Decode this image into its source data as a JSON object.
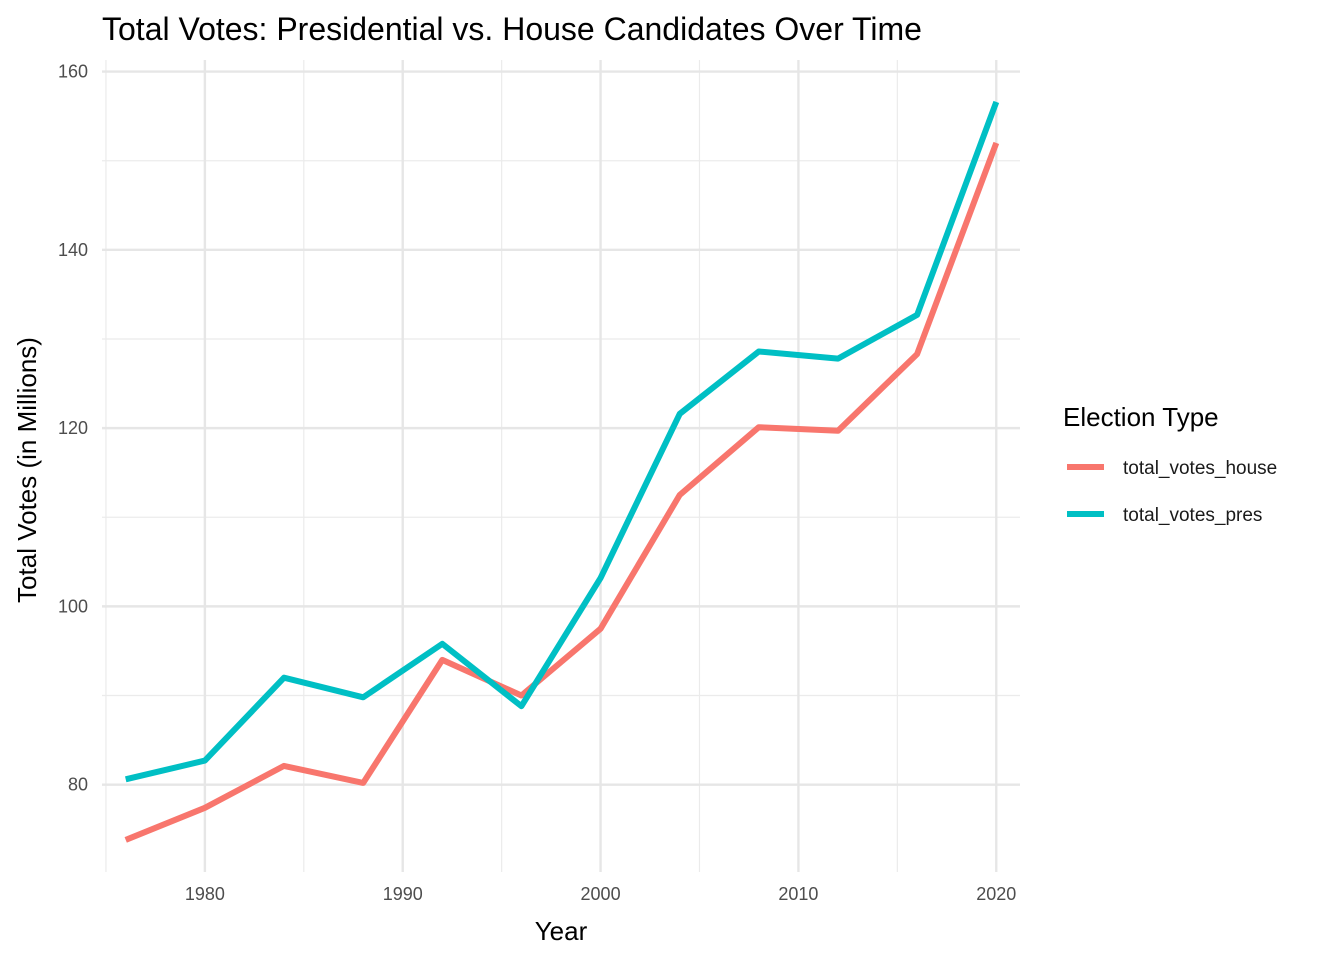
{
  "chart_data": {
    "type": "line",
    "title": "Total Votes: Presidential vs. House Candidates Over Time",
    "xlabel": "Year",
    "ylabel": "Total Votes (in Millions)",
    "x": [
      1976,
      1980,
      1984,
      1988,
      1992,
      1996,
      2000,
      2004,
      2008,
      2012,
      2016,
      2020
    ],
    "xlim": [
      1974.8,
      2021.2
    ],
    "ylim": [
      70.2,
      161.3
    ],
    "x_ticks": [
      1980,
      1990,
      2000,
      2010,
      2020
    ],
    "x_tick_labels": [
      "1980",
      "1990",
      "2000",
      "2010",
      "2020"
    ],
    "y_ticks": [
      80,
      100,
      120,
      140,
      160
    ],
    "y_tick_labels": [
      "80",
      "100",
      "120",
      "140",
      "160"
    ],
    "grid": true,
    "legend": {
      "title": "Election Type",
      "position": "right"
    },
    "series": [
      {
        "name": "total_votes_house",
        "color": "#F8766D",
        "values": [
          73.8,
          77.4,
          82.1,
          80.2,
          94.0,
          90.0,
          97.5,
          112.5,
          120.1,
          119.7,
          128.3,
          152.0
        ]
      },
      {
        "name": "total_votes_pres",
        "color": "#00BFC4",
        "values": [
          80.6,
          82.7,
          92.0,
          89.8,
          95.8,
          88.8,
          103.2,
          121.6,
          128.6,
          127.8,
          132.7,
          156.6
        ]
      }
    ]
  }
}
